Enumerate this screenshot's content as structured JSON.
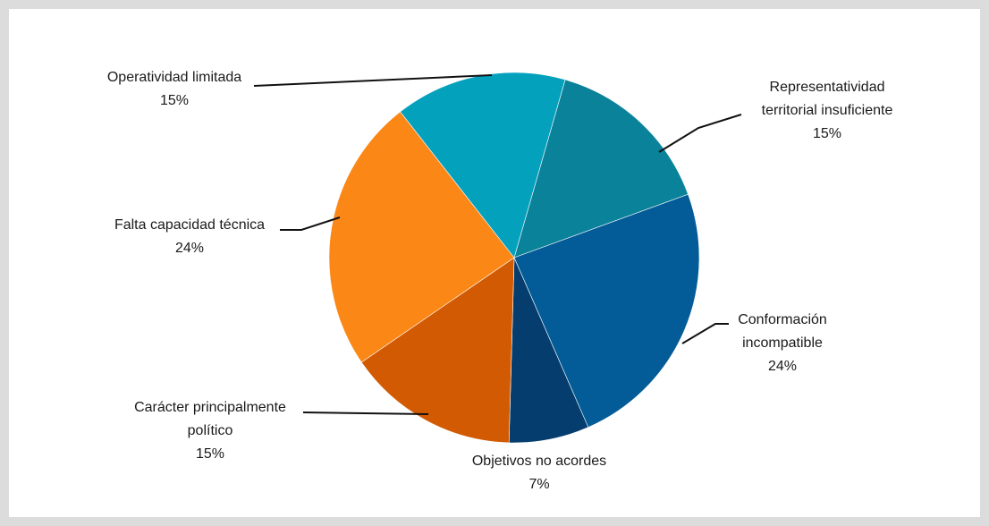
{
  "chart_data": {
    "type": "pie",
    "title": "",
    "start_angle_deg": 16,
    "direction": "clockwise",
    "colors": {
      "representatividad": "#09829a",
      "conformacion": "#035c97",
      "objetivos": "#053d6e",
      "caracter": "#d25a03",
      "falta": "#fb8716",
      "operatividad": "#04a1bd"
    },
    "slices": [
      {
        "key": "representatividad",
        "lines": [
          "Representatividad",
          "territorial insuficiente"
        ],
        "value": 15,
        "value_label": "15%"
      },
      {
        "key": "conformacion",
        "lines": [
          "Conformación",
          "incompatible"
        ],
        "value": 24,
        "value_label": "24%"
      },
      {
        "key": "objetivos",
        "lines": [
          "Objetivos no acordes"
        ],
        "value": 7,
        "value_label": "7%"
      },
      {
        "key": "caracter",
        "lines": [
          "Carácter principalmente",
          "político"
        ],
        "value": 15,
        "value_label": "15%"
      },
      {
        "key": "falta",
        "lines": [
          "Falta capacidad técnica"
        ],
        "value": 24,
        "value_label": "24%"
      },
      {
        "key": "operatividad",
        "lines": [
          "Operatividad limitada"
        ],
        "value": 15,
        "value_label": "15%"
      }
    ]
  }
}
